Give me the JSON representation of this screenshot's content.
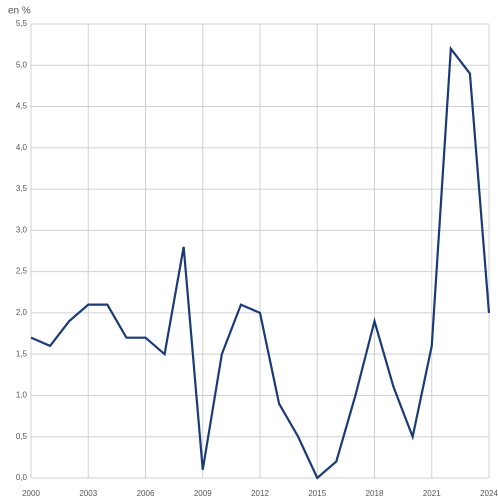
{
  "chart_data": {
    "type": "line",
    "y_label": "en %",
    "x": [
      2000,
      2001,
      2002,
      2003,
      2004,
      2005,
      2006,
      2007,
      2008,
      2009,
      2010,
      2011,
      2012,
      2013,
      2014,
      2015,
      2016,
      2017,
      2018,
      2019,
      2020,
      2021,
      2022,
      2023,
      2024
    ],
    "values": [
      1.7,
      1.6,
      1.9,
      2.1,
      2.1,
      1.7,
      1.7,
      1.5,
      2.8,
      0.1,
      1.5,
      2.1,
      2.0,
      0.9,
      0.5,
      0.0,
      0.2,
      1.0,
      1.9,
      1.1,
      0.5,
      1.6,
      5.2,
      4.9,
      2.0
    ],
    "color": "#1b3a78",
    "xlim": [
      2000,
      2024
    ],
    "xticks": [
      2000,
      2003,
      2006,
      2009,
      2012,
      2015,
      2018,
      2021,
      2024
    ],
    "ylim": [
      0,
      5.5
    ],
    "yticks": [
      {
        "value": 0,
        "label": "0,0"
      },
      {
        "value": 0.5,
        "label": "0,5"
      },
      {
        "value": 1,
        "label": "1,0"
      },
      {
        "value": 1.5,
        "label": "1,5"
      },
      {
        "value": 2,
        "label": "2,0"
      },
      {
        "value": 2.5,
        "label": "2,5"
      },
      {
        "value": 3,
        "label": "3,0"
      },
      {
        "value": 3.5,
        "label": "3,5"
      },
      {
        "value": 4,
        "label": "4,0"
      },
      {
        "value": 4.5,
        "label": "4,5"
      },
      {
        "value": 5,
        "label": "5,0"
      },
      {
        "value": 5.5,
        "label": "5,5"
      }
    ],
    "grid": true
  }
}
